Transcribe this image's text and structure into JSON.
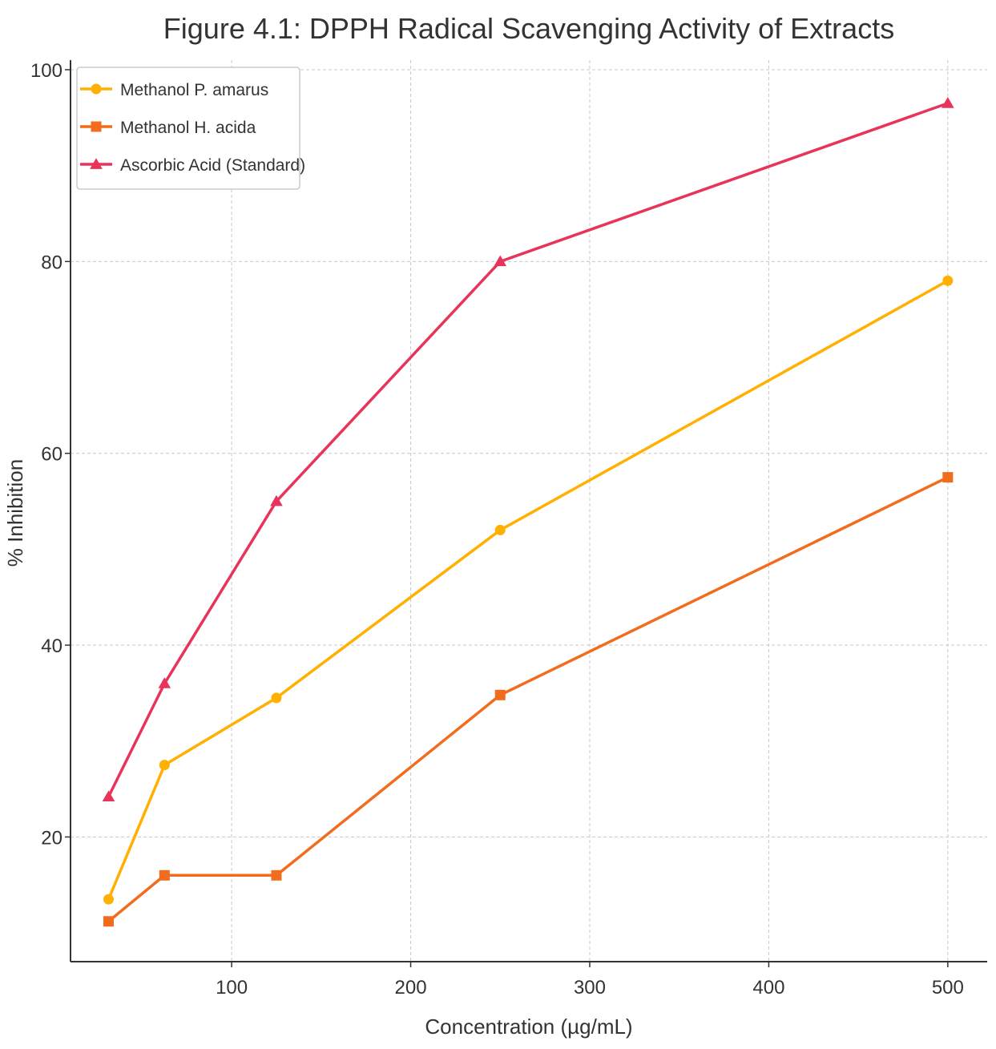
{
  "chart_data": {
    "type": "line",
    "title": "Figure 4.1: DPPH Radical Scavenging Activity of Extracts",
    "xlabel": "Concentration (µg/mL)",
    "ylabel": "% Inhibition",
    "x": [
      31.25,
      62.5,
      125,
      250,
      500
    ],
    "xlim": [
      10,
      522
    ],
    "ylim": [
      7,
      101
    ],
    "xticks": [
      100,
      200,
      300,
      400,
      500
    ],
    "yticks": [
      20,
      40,
      60,
      80,
      100
    ],
    "grid": true,
    "legend_position": "top-left",
    "series": [
      {
        "name": "Methanol P. amarus",
        "color": "#FFB000",
        "marker": "circle",
        "values": [
          13.5,
          27.5,
          34.5,
          52.0,
          78.0
        ]
      },
      {
        "name": "Methanol H. acida",
        "color": "#F26C1E",
        "marker": "square",
        "values": [
          11.2,
          16.0,
          16.0,
          34.8,
          57.5
        ]
      },
      {
        "name": "Ascorbic Acid (Standard)",
        "color": "#E8345A",
        "marker": "triangle",
        "values": [
          24.2,
          36.0,
          55.0,
          80.0,
          96.5
        ]
      }
    ]
  }
}
